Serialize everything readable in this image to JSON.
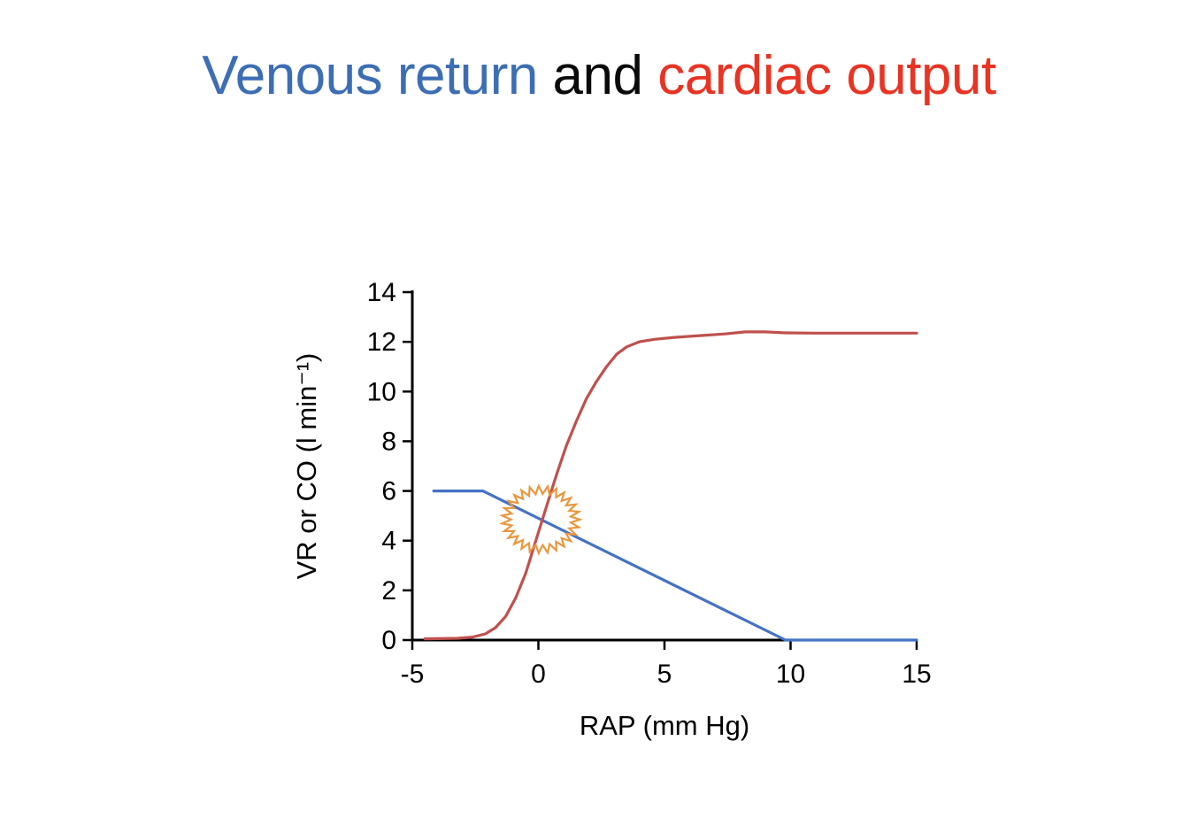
{
  "title": {
    "venous_return": "Venous return",
    "connector": " and ",
    "cardiac_output": "cardiac output",
    "venous_return_color": "#3C6EB4",
    "connector_color": "#0A0A0A",
    "cardiac_output_color": "#E93323"
  },
  "chart_data": {
    "type": "line",
    "title": "",
    "xlabel": "RAP (mm Hg)",
    "ylabel": "VR or CO (l min⁻¹)",
    "xlim": [
      -5,
      15
    ],
    "ylim": [
      0,
      14
    ],
    "x_ticks": [
      -5,
      0,
      5,
      10,
      15
    ],
    "y_ticks": [
      0,
      2,
      4,
      6,
      8,
      10,
      12,
      14
    ],
    "grid": false,
    "legend": "none",
    "series": [
      {
        "name": "Venous return (VR)",
        "color": "#4472C4",
        "points": [
          [
            -4.15,
            6
          ],
          [
            -2.2,
            6
          ],
          [
            9.8,
            0
          ],
          [
            15,
            0
          ]
        ]
      },
      {
        "name": "Cardiac output (CO)",
        "color": "#C0504D",
        "points": [
          [
            -4.5,
            0.05
          ],
          [
            -3.2,
            0.07
          ],
          [
            -2.6,
            0.12
          ],
          [
            -2.1,
            0.25
          ],
          [
            -1.7,
            0.5
          ],
          [
            -1.3,
            0.95
          ],
          [
            -0.9,
            1.7
          ],
          [
            -0.5,
            2.7
          ],
          [
            -0.1,
            4.0
          ],
          [
            0.3,
            5.3
          ],
          [
            0.7,
            6.6
          ],
          [
            1.1,
            7.8
          ],
          [
            1.5,
            8.8
          ],
          [
            1.9,
            9.7
          ],
          [
            2.3,
            10.4
          ],
          [
            2.7,
            11.0
          ],
          [
            3.1,
            11.5
          ],
          [
            3.5,
            11.8
          ],
          [
            4.0,
            12.0
          ],
          [
            4.6,
            12.1
          ],
          [
            5.4,
            12.18
          ],
          [
            6.4,
            12.25
          ],
          [
            7.4,
            12.32
          ],
          [
            8.2,
            12.4
          ],
          [
            9.0,
            12.4
          ],
          [
            9.8,
            12.36
          ],
          [
            11,
            12.35
          ],
          [
            15,
            12.35
          ]
        ]
      }
    ],
    "annotation": {
      "shape": "starburst-circle",
      "x": 0.1,
      "y": 4.85,
      "rx_outer": 44,
      "ry_outer": 38,
      "rx_inner": 34,
      "ry_inner": 29,
      "spikes": 27,
      "color": "#E9973E"
    }
  }
}
